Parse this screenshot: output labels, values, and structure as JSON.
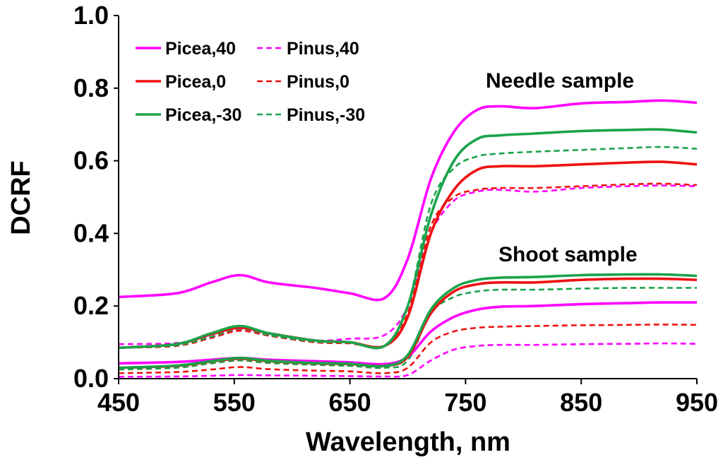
{
  "chart_data": {
    "type": "line",
    "title": "",
    "xlabel": "Wavelength, nm",
    "ylabel": "DCRF",
    "xlim": [
      450,
      950
    ],
    "ylim": [
      0,
      1.0
    ],
    "x_ticks": [
      450,
      550,
      650,
      750,
      850,
      950
    ],
    "y_ticks": [
      0,
      0.2,
      0.4,
      0.6,
      0.8,
      1.0
    ],
    "x_tick_labels": [
      "450",
      "550",
      "650",
      "750",
      "850",
      "950"
    ],
    "y_tick_labels": [
      "0.0",
      "0.2",
      "0.4",
      "0.6",
      "0.8",
      "1.0"
    ],
    "grid": false,
    "legend_position": "top-left",
    "annotations": {
      "needle": "Needle sample",
      "shoot": "Shoot sample"
    },
    "x": [
      450,
      500,
      530,
      555,
      580,
      620,
      650,
      680,
      700,
      720,
      740,
      760,
      780,
      810,
      850,
      890,
      920,
      950
    ],
    "series": [
      {
        "name": "Picea,40",
        "sample": "needle",
        "color": "#ff00ff",
        "dash": "solid",
        "values": [
          0.225,
          0.235,
          0.265,
          0.285,
          0.265,
          0.25,
          0.235,
          0.222,
          0.33,
          0.55,
          0.68,
          0.74,
          0.75,
          0.745,
          0.758,
          0.762,
          0.766,
          0.76
        ]
      },
      {
        "name": "Picea,0",
        "sample": "needle",
        "color": "#ee1111",
        "dash": "solid",
        "values": [
          0.085,
          0.095,
          0.122,
          0.14,
          0.125,
          0.105,
          0.1,
          0.09,
          0.17,
          0.4,
          0.52,
          0.575,
          0.585,
          0.585,
          0.59,
          0.595,
          0.597,
          0.59
        ]
      },
      {
        "name": "Picea,-30",
        "sample": "needle",
        "color": "#1aa34a",
        "dash": "solid",
        "values": [
          0.085,
          0.095,
          0.125,
          0.145,
          0.125,
          0.105,
          0.1,
          0.09,
          0.2,
          0.45,
          0.6,
          0.66,
          0.67,
          0.675,
          0.682,
          0.685,
          0.686,
          0.678
        ]
      },
      {
        "name": "Pinus,40",
        "sample": "needle",
        "color": "#ff00ff",
        "dash": "dashed",
        "values": [
          0.095,
          0.098,
          0.115,
          0.135,
          0.12,
          0.105,
          0.11,
          0.12,
          0.2,
          0.4,
          0.49,
          0.515,
          0.52,
          0.515,
          0.525,
          0.53,
          0.532,
          0.53
        ]
      },
      {
        "name": "Pinus,0",
        "sample": "needle",
        "color": "#ee1111",
        "dash": "dashed",
        "values": [
          0.085,
          0.09,
          0.112,
          0.132,
          0.118,
          0.1,
          0.097,
          0.09,
          0.18,
          0.42,
          0.5,
          0.52,
          0.525,
          0.525,
          0.53,
          0.535,
          0.537,
          0.533
        ]
      },
      {
        "name": "Pinus,-30",
        "sample": "needle",
        "color": "#1aa34a",
        "dash": "dashed",
        "values": [
          0.085,
          0.092,
          0.115,
          0.138,
          0.12,
          0.102,
          0.1,
          0.09,
          0.2,
          0.48,
          0.58,
          0.612,
          0.62,
          0.625,
          0.63,
          0.635,
          0.638,
          0.633
        ]
      },
      {
        "name": "Picea,40",
        "sample": "shoot",
        "color": "#ff00ff",
        "dash": "solid",
        "values": [
          0.042,
          0.046,
          0.052,
          0.057,
          0.052,
          0.048,
          0.045,
          0.04,
          0.06,
          0.13,
          0.17,
          0.19,
          0.198,
          0.2,
          0.205,
          0.208,
          0.21,
          0.21
        ]
      },
      {
        "name": "Picea,0",
        "sample": "shoot",
        "color": "#ee1111",
        "dash": "solid",
        "values": [
          0.03,
          0.035,
          0.047,
          0.055,
          0.048,
          0.042,
          0.04,
          0.035,
          0.06,
          0.18,
          0.24,
          0.26,
          0.265,
          0.265,
          0.272,
          0.275,
          0.275,
          0.272
        ]
      },
      {
        "name": "Picea,-30",
        "sample": "shoot",
        "color": "#1aa34a",
        "dash": "solid",
        "values": [
          0.03,
          0.036,
          0.048,
          0.057,
          0.049,
          0.043,
          0.041,
          0.035,
          0.065,
          0.19,
          0.25,
          0.272,
          0.278,
          0.28,
          0.285,
          0.287,
          0.287,
          0.283
        ]
      },
      {
        "name": "Pinus,40",
        "sample": "shoot",
        "color": "#ff00ff",
        "dash": "dashed",
        "values": [
          0.005,
          0.006,
          0.008,
          0.01,
          0.009,
          0.008,
          0.007,
          0.006,
          0.01,
          0.05,
          0.08,
          0.09,
          0.093,
          0.093,
          0.095,
          0.096,
          0.097,
          0.096
        ]
      },
      {
        "name": "Pinus,0",
        "sample": "shoot",
        "color": "#ee1111",
        "dash": "dashed",
        "values": [
          0.015,
          0.018,
          0.025,
          0.032,
          0.026,
          0.022,
          0.02,
          0.015,
          0.03,
          0.1,
          0.13,
          0.14,
          0.143,
          0.145,
          0.147,
          0.148,
          0.149,
          0.148
        ]
      },
      {
        "name": "Pinus,-30",
        "sample": "shoot",
        "color": "#1aa34a",
        "dash": "dashed",
        "values": [
          0.025,
          0.03,
          0.042,
          0.05,
          0.043,
          0.038,
          0.035,
          0.03,
          0.05,
          0.18,
          0.225,
          0.24,
          0.245,
          0.245,
          0.248,
          0.25,
          0.25,
          0.25
        ]
      }
    ],
    "legend": [
      {
        "label": "Picea,40",
        "color": "#ff00ff",
        "dash": "solid"
      },
      {
        "label": "Pinus,40",
        "color": "#ff00ff",
        "dash": "dashed"
      },
      {
        "label": "Picea,0",
        "color": "#ee1111",
        "dash": "solid"
      },
      {
        "label": "Pinus,0",
        "color": "#ee1111",
        "dash": "dashed"
      },
      {
        "label": "Picea,-30",
        "color": "#1aa34a",
        "dash": "solid"
      },
      {
        "label": "Pinus,-30",
        "color": "#1aa34a",
        "dash": "dashed"
      }
    ]
  }
}
